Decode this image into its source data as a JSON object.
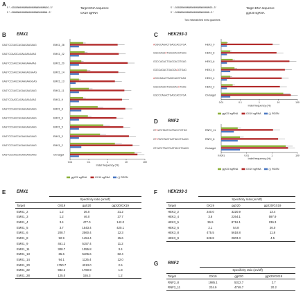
{
  "panelA": {
    "letter": "A",
    "left": {
      "seq1": "5'–GGGGNNNNNNNNNNNNNNNNNNNGG–3'",
      "seq2": "5'–GNNNNNNNNNNNNNNNNNNNNNNN–3'",
      "lab1": "Target DNA sequence",
      "lab2": "GX19 sgRNA"
    },
    "right": {
      "seq1": "5'–GGGGNNNNNNNNNNNNNNNNNNNGG–3'",
      "seq2": "5'–GGNNNNNNNNNNNNNNNNNNNNN–3'",
      "lab1": "Target DNA sequence",
      "lab2": "ggX20 sgRNA",
      "note": "Two mismatched extra guanines"
    }
  },
  "panelB": {
    "letter": "B",
    "title": "EMX1",
    "xlabel": "Indel frequency (%)",
    "legend": [
      "ggX20 sgRNA",
      "GX19 sgRNA",
      "(-) RGEN"
    ]
  },
  "panelC": {
    "letter": "C",
    "title": "HEK293-3",
    "xlabel": "Indel frequency (%)",
    "legend": [
      "ggX20 sgRNA",
      "GX19 sgRNA",
      "(-) RGEN"
    ]
  },
  "panelD": {
    "letter": "D",
    "title": "RNF2",
    "xlabel": "Indel frequency (%)",
    "legend": [
      "ggX20 sgRNA",
      "GX19 sgRNA",
      "(-) RGEN"
    ]
  },
  "colors": {
    "ggX20": "#8db13c",
    "GX19": "#b22a2a",
    "RGEN": "#4b78c2",
    "mismatch": "#cc2a2a"
  },
  "chart_data": [
    {
      "type": "bar",
      "title": "EMX1",
      "xlabel": "Indel frequency (%)",
      "xscale": "log",
      "xlim": [
        0.01,
        100
      ],
      "xticks": [
        "0.01",
        "0.1",
        "1",
        "10",
        "100"
      ],
      "categories": [
        "EMX1_28",
        "EMX1_22",
        "EMX1_20",
        "EMX1_14",
        "EMX1_13",
        "EMX1_11",
        "EMX1_9",
        "EMX1_8",
        "EMX1_6",
        "EMX1_5",
        "EMX1_3",
        "EMX1_2",
        "On-target"
      ],
      "sequences": [
        "GAGTCCGAGCAGAAGAAGAAG",
        "GAGTCCAAGCAGAAGAAGAAG",
        "GAGTCCGAGCAGAAGAAAAAG",
        "GAGTCCGAGCAGAAGAGGAAG",
        "GAGTCCGAGCAGAAGAAGGAG",
        "GAGTCCGAGCAGAAGAAGAAG",
        "GAGTCCAAGCAGAAGAAGAAG",
        "GAGTCCGAGCAGAAGAAGAAG",
        "GAGTCCGAGCAGAAGAAGAAG",
        "GAGTCCGAGCAGAAGAAGAAG",
        "GAGTCCGAGCAGAAGAAGAAG",
        "GAGTCCGAGCAGAAGAAGAAG",
        "GAGTCCGAGCAGAAGAAGAAG"
      ],
      "series": [
        {
          "name": "ggX20 sgRNA",
          "values": [
            0.05,
            0.06,
            0.04,
            0.08,
            0.03,
            0.1,
            0.05,
            0.3,
            0.09,
            0.6,
            0.4,
            2.5,
            28
          ]
        },
        {
          "name": "GX19 sgRNA",
          "values": [
            3.5,
            4.0,
            12,
            3.8,
            2.5,
            8,
            6,
            9,
            3,
            7,
            14,
            22,
            40
          ]
        },
        {
          "name": "(-) RGEN",
          "values": [
            0.03,
            0.03,
            0.03,
            0.03,
            0.02,
            0.03,
            0.03,
            0.04,
            0.03,
            0.03,
            0.03,
            0.04,
            0.03
          ]
        }
      ]
    },
    {
      "type": "bar",
      "title": "HEK293-3",
      "xlabel": "Indel frequency (%)",
      "xscale": "log",
      "xlim": [
        0.01,
        100
      ],
      "xticks": [
        "0.01",
        "0.1",
        "1",
        "10",
        "100"
      ],
      "categories": [
        "HEK3_9",
        "HEK3_8",
        "HEK3_6",
        "HEK3_5",
        "HEK3_4",
        "HEK3_2",
        "On-target"
      ],
      "sequences": [
        "aGGGCAGACTGAGCACGTGA",
        "GGGCAGAcTGAGCACGTGAG",
        "GGCCAGACTGAGCACGTGAG",
        "GGGCAGACTGAGCAgGTGAG",
        "aGCCAGACTGAGCACGTGAG",
        "GGGCAGACTGAGCACcTGAG",
        "GGCCCAGACTGAGCACGTGA"
      ],
      "series": [
        {
          "name": "ggX20 sgRNA",
          "values": [
            0.02,
            0.03,
            0.04,
            0.05,
            0.03,
            0.04,
            18
          ]
        },
        {
          "name": "GX19 sgRNA",
          "values": [
            5,
            8,
            38,
            22,
            15,
            12,
            45
          ]
        },
        {
          "name": "(-) RGEN",
          "values": [
            0.02,
            0.02,
            0.02,
            0.03,
            0.02,
            0.02,
            0.03
          ]
        }
      ]
    },
    {
      "type": "bar",
      "title": "RNF2",
      "xlabel": "Indel frequency (%)",
      "xscale": "log",
      "xlim": [
        0.0001,
        100
      ],
      "xticks": [
        "0.0001",
        "0.01",
        "1",
        "100"
      ],
      "categories": [
        "RNF2_11",
        "RNF2_8",
        "On-target"
      ],
      "sequences": [
        "GtcATCTAGTCATTACCTGTGG",
        "GtcTATCTAGTCATTACCTGAGG",
        "GTCATCTTAGTCATTACCTGAGG"
      ],
      "series": [
        {
          "name": "ggX20 sgRNA",
          "values": [
            0.002,
            0.003,
            12
          ]
        },
        {
          "name": "GX19 sgRNA",
          "values": [
            1.2,
            3.0,
            18
          ]
        },
        {
          "name": "(-) RGEN",
          "values": [
            0.001,
            0.002,
            0.003
          ]
        }
      ]
    },
    {
      "type": "table",
      "title": "EMX1",
      "header_span": "Specificity ratio (on/off)",
      "columns": [
        "Target",
        "GX19",
        "ggX20",
        "ggX20/GX19"
      ],
      "rows": [
        [
          "EMX1_2",
          "1.2",
          "36.0",
          "31.2"
        ],
        [
          "EMX1_3",
          "1.2",
          "46.0",
          "37.7"
        ],
        [
          "EMX1_4",
          "3.4",
          "477.0",
          "142.0"
        ],
        [
          "EMX1_5",
          "3.7",
          "1543.4",
          "420.1"
        ],
        [
          "EMX1_6",
          "208.7",
          "2560.4",
          "12.3"
        ],
        [
          "EMX1_8",
          "92.9",
          "1454.4",
          "15.6"
        ],
        [
          "EMX1_9",
          "461.2",
          "5157.4",
          "11.2"
        ],
        [
          "EMX1_11",
          "308.7",
          "1055.8",
          "3.4"
        ],
        [
          "EMX1_13",
          "65.6",
          "5406.6",
          "82.4"
        ],
        [
          "EMX1_14",
          "94.1",
          "1125.4",
          "12.0"
        ],
        [
          "EMX1_20",
          "1750.7",
          "4313.0",
          "2.5"
        ],
        [
          "EMX1_22",
          "982.2",
          "1760.9",
          "1.8"
        ],
        [
          "EMX1_28",
          "125.0",
          "155.3",
          "1.2"
        ]
      ]
    },
    {
      "type": "table",
      "title": "HEK293-3",
      "header_span": "Specificity ratio (on/off)",
      "columns": [
        "Target",
        "GX19",
        "ggX20",
        "ggX20/GX19"
      ],
      "rows": [
        [
          "HEK3_2",
          "240.0",
          "3220.9",
          "13.4"
        ],
        [
          "HEK3_4",
          "3.8",
          "2264.1",
          "597.9"
        ],
        [
          "HEK3_5",
          "36.9",
          "8716.1",
          "236.3"
        ],
        [
          "HEK3_6",
          "2.1",
          "54.8",
          "26.0"
        ],
        [
          "HEK3_8",
          "475.5",
          "5618.8",
          "11.8"
        ],
        [
          "HEK3_9",
          "628.8",
          "2803.3",
          "4.5"
        ]
      ]
    },
    {
      "type": "table",
      "title": "RNF2",
      "header_span": "Specificity ratio (on/off)",
      "columns": [
        "Target",
        "GX19",
        "ggX20",
        "ggX20/GX19"
      ],
      "rows": [
        [
          "RNF2_8",
          "1985.1",
          "5312.7",
          "2.7"
        ],
        [
          "RNF2_11",
          "234.9",
          "4749.7",
          "20.2"
        ]
      ]
    }
  ],
  "panelE": {
    "letter": "E",
    "title": "EMX1"
  },
  "panelF": {
    "letter": "F",
    "title": "HEK293-3"
  },
  "panelG": {
    "letter": "G",
    "title": "RNF2"
  }
}
